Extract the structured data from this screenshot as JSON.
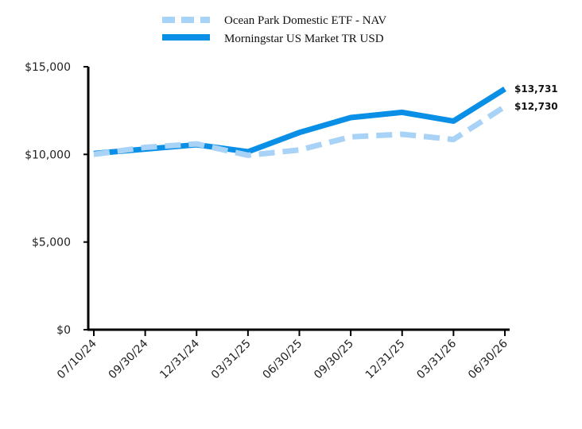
{
  "chart_data": {
    "type": "line",
    "title": "",
    "xlabel": "",
    "ylabel": "",
    "categories": [
      "07/10/24",
      "09/30/24",
      "12/31/24",
      "03/31/25",
      "06/30/25",
      "09/30/25",
      "12/31/25",
      "03/31/26",
      "06/30/26"
    ],
    "ylim": [
      0,
      15000
    ],
    "y_ticks": [
      0,
      5000,
      10000,
      15000
    ],
    "y_tick_labels": [
      "$0",
      "$5,000",
      "$10,000",
      "$15,000"
    ],
    "grid": false,
    "legend_position": "top",
    "series": [
      {
        "name": "Ocean Park Domestic ETF - NAV",
        "style": "dashed",
        "color": "#a9d2f7",
        "values": [
          10000,
          10400,
          10600,
          9950,
          10250,
          11000,
          11150,
          10850,
          12730
        ],
        "end_label": "$12,730"
      },
      {
        "name": "Morningstar US Market TR USD",
        "style": "solid",
        "color": "#0a8fe6",
        "values": [
          10050,
          10300,
          10550,
          10150,
          11250,
          12100,
          12400,
          11900,
          13731
        ],
        "end_label": "$13,731"
      }
    ]
  }
}
